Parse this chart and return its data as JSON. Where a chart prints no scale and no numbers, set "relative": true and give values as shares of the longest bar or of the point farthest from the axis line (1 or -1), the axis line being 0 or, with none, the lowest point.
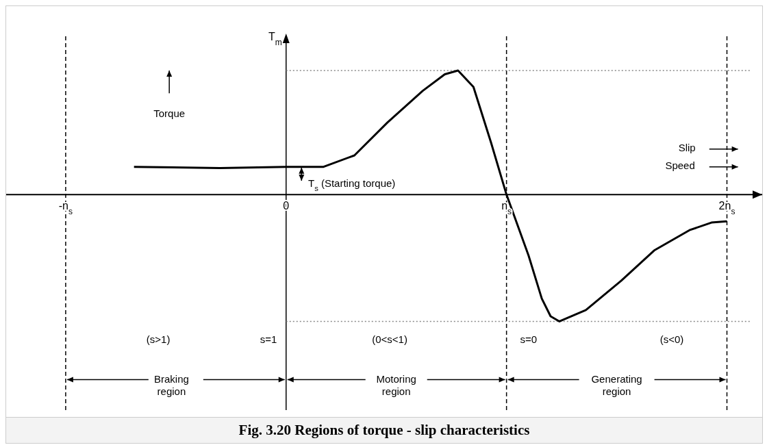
{
  "chart_data": {
    "type": "line",
    "ylabel": "T$_{m}$",
    "relative": true,
    "color": "#000000",
    "line_style": "solid",
    "x": [
      -0.69,
      -0.3,
      0,
      0.17,
      0.31,
      0.46,
      0.62,
      0.72,
      0.78,
      0.85,
      0.93,
      1.0,
      1.1,
      1.16,
      1.2,
      1.24,
      1.36,
      1.52,
      1.67,
      1.83,
      1.93,
      2.0
    ],
    "values": [
      0.22,
      0.21,
      0.22,
      0.22,
      0.31,
      0.57,
      0.82,
      0.95,
      0.98,
      0.85,
      0.41,
      0,
      -0.48,
      -0.82,
      -0.96,
      -1,
      -0.91,
      -0.68,
      -0.44,
      -0.28,
      -0.22,
      -0.21
    ],
    "xlim": [
      -1.27,
      2.16
    ],
    "xticks": [
      {
        "value": -1,
        "label": "-n$_{s}$"
      },
      0,
      {
        "value": 1,
        "label": "n$_{s}$"
      },
      {
        "value": 2,
        "label": "2n$_{s}$"
      }
    ],
    "ref_lines": [
      {
        "axis": "x",
        "value": 0,
        "color": "#000000",
        "line_style": "solid"
      },
      {
        "axis": "x",
        "value": -1,
        "color": "#000000",
        "line_style": "dashed"
      },
      {
        "axis": "x",
        "value": 1,
        "color": "#000000",
        "line_style": "dashed"
      },
      {
        "axis": "x",
        "value": 2,
        "color": "#000000",
        "line_style": "dashed"
      },
      {
        "axis": "y",
        "value": 0.98,
        "color": "#888888",
        "line_style": "dotted"
      },
      {
        "axis": "y",
        "value": -1,
        "color": "#888888",
        "line_style": "dotted"
      }
    ],
    "annotations": [
      "Torque",
      "T$_{s}$ (Starting torque)",
      "Slip",
      "Speed",
      "(s>1)",
      "s=1",
      "(0<s<1)",
      "s=0",
      "(s<0)",
      "Braking region",
      "Motoring region",
      "Generating region",
      "Fig. 3.20 Regions of torque - slip characteristics"
    ]
  }
}
